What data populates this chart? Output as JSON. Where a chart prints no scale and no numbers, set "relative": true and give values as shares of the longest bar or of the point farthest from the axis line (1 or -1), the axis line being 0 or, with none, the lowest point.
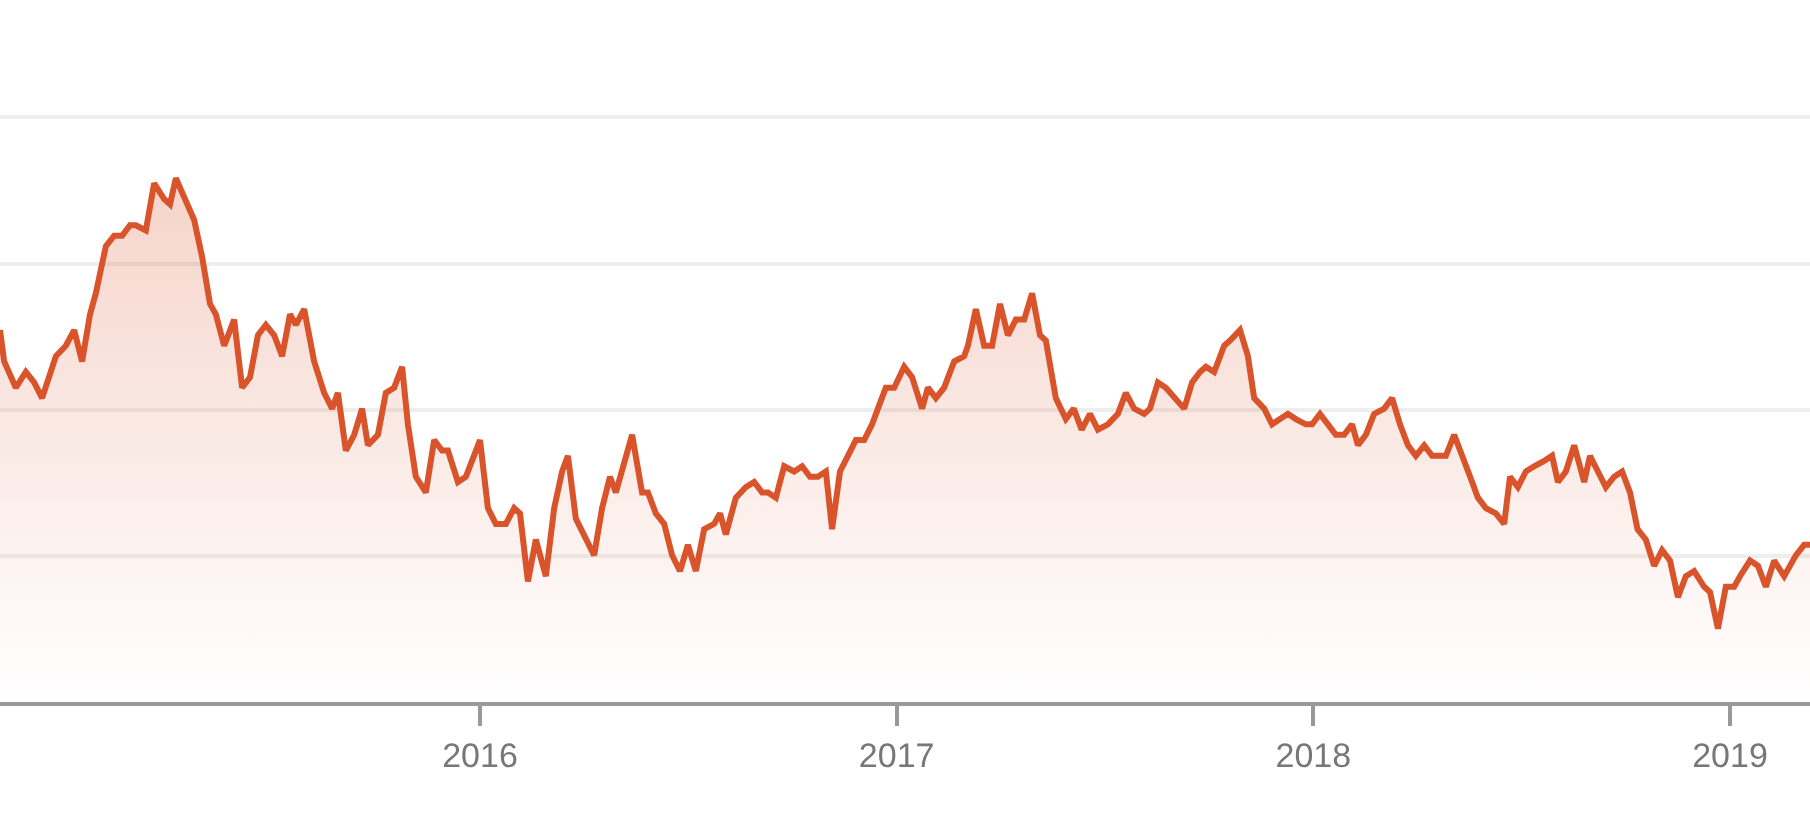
{
  "chart_data": {
    "type": "area",
    "relative": true,
    "grid": "y",
    "marker": "none",
    "line_style": "solid",
    "xlim": [
      2014.848,
      2019.192
    ],
    "xticks": [
      2016,
      2017,
      2018,
      2019
    ],
    "series": [
      {
        "color": "#d9532b",
        "x": [
          2014.848,
          2014.858,
          2014.886,
          2014.91,
          2014.93,
          2014.949,
          2014.982,
          2015.006,
          2015.026,
          2015.045,
          2015.064,
          2015.078,
          2015.102,
          2015.122,
          2015.141,
          2015.16,
          2015.174,
          2015.198,
          2015.218,
          2015.242,
          2015.256,
          2015.27,
          2015.314,
          2015.333,
          2015.352,
          2015.366,
          2015.386,
          2015.41,
          2015.429,
          2015.448,
          2015.467,
          2015.486,
          2015.506,
          2015.525,
          2015.544,
          2015.558,
          2015.578,
          2015.602,
          2015.626,
          2015.645,
          2015.659,
          2015.678,
          2015.698,
          2015.717,
          2015.731,
          2015.755,
          2015.774,
          2015.794,
          2015.813,
          2015.827,
          2015.846,
          2015.87,
          2015.89,
          2015.909,
          2015.923,
          2015.947,
          2015.966,
          2016.0,
          2016.019,
          2016.038,
          2016.062,
          2016.082,
          2016.096,
          2016.115,
          2016.134,
          2016.158,
          2016.178,
          2016.197,
          2016.211,
          2016.23,
          2016.274,
          2016.293,
          2016.312,
          2016.326,
          2016.365,
          2016.389,
          2016.403,
          2016.422,
          2016.442,
          2016.461,
          2016.48,
          2016.499,
          2016.518,
          2016.538,
          2016.562,
          2016.576,
          2016.59,
          2016.614,
          2016.638,
          2016.658,
          2016.677,
          2016.691,
          2016.71,
          2016.73,
          2016.754,
          2016.773,
          2016.792,
          2016.811,
          2016.83,
          2016.845,
          2016.864,
          2016.883,
          2016.902,
          2016.922,
          2016.941,
          2016.955,
          2016.974,
          2016.994,
          2017.018,
          2017.037,
          2017.061,
          2017.075,
          2017.094,
          2017.114,
          2017.138,
          2017.162,
          2017.171,
          2017.19,
          2017.21,
          2017.229,
          2017.248,
          2017.267,
          2017.286,
          2017.306,
          2017.325,
          2017.344,
          2017.358,
          2017.382,
          2017.406,
          2017.425,
          2017.444,
          2017.464,
          2017.483,
          2017.507,
          2017.531,
          2017.55,
          2017.57,
          2017.594,
          2017.608,
          2017.627,
          2017.646,
          2017.69,
          2017.709,
          2017.728,
          2017.742,
          2017.762,
          2017.786,
          2017.8,
          2017.824,
          2017.843,
          2017.858,
          2017.882,
          2017.901,
          2017.92,
          2017.939,
          2017.958,
          2017.982,
          2017.997,
          2018.016,
          2018.035,
          2018.054,
          2018.074,
          2018.093,
          2018.107,
          2018.126,
          2018.146,
          2018.17,
          2018.189,
          2018.208,
          2018.227,
          2018.246,
          2018.266,
          2018.285,
          2018.304,
          2018.318,
          2018.338,
          2018.362,
          2018.381,
          2018.395,
          2018.414,
          2018.438,
          2018.458,
          2018.472,
          2018.491,
          2018.51,
          2018.53,
          2018.554,
          2018.573,
          2018.587,
          2018.606,
          2018.626,
          2018.65,
          2018.664,
          2018.683,
          2018.702,
          2018.722,
          2018.741,
          2018.76,
          2018.778,
          2018.798,
          2018.818,
          2018.837,
          2018.856,
          2018.875,
          2018.894,
          2018.914,
          2018.938,
          2018.952,
          2018.971,
          2018.99,
          2019.01,
          2019.024,
          2019.048,
          2019.067,
          2019.086,
          2019.106,
          2019.13,
          2019.158,
          2019.178,
          2019.192
        ],
        "values": [
          0.71,
          0.65,
          0.6,
          0.63,
          0.61,
          0.58,
          0.66,
          0.68,
          0.71,
          0.65,
          0.74,
          0.78,
          0.87,
          0.89,
          0.89,
          0.91,
          0.91,
          0.9,
          0.99,
          0.96,
          0.95,
          1,
          0.92,
          0.85,
          0.76,
          0.74,
          0.68,
          0.73,
          0.6,
          0.62,
          0.7,
          0.72,
          0.7,
          0.66,
          0.74,
          0.72,
          0.75,
          0.65,
          0.59,
          0.56,
          0.59,
          0.48,
          0.51,
          0.56,
          0.49,
          0.51,
          0.59,
          0.6,
          0.64,
          0.53,
          0.43,
          0.4,
          0.5,
          0.48,
          0.48,
          0.42,
          0.43,
          0.5,
          0.37,
          0.34,
          0.34,
          0.37,
          0.36,
          0.23,
          0.31,
          0.24,
          0.37,
          0.44,
          0.47,
          0.35,
          0.28,
          0.37,
          0.43,
          0.4,
          0.51,
          0.4,
          0.4,
          0.36,
          0.34,
          0.28,
          0.25,
          0.3,
          0.25,
          0.33,
          0.34,
          0.36,
          0.32,
          0.39,
          0.41,
          0.42,
          0.4,
          0.4,
          0.39,
          0.45,
          0.44,
          0.45,
          0.43,
          0.43,
          0.44,
          0.33,
          0.44,
          0.47,
          0.5,
          0.5,
          0.53,
          0.56,
          0.6,
          0.6,
          0.64,
          0.62,
          0.56,
          0.6,
          0.58,
          0.6,
          0.65,
          0.66,
          0.68,
          0.75,
          0.68,
          0.68,
          0.76,
          0.7,
          0.73,
          0.73,
          0.78,
          0.7,
          0.69,
          0.58,
          0.54,
          0.56,
          0.52,
          0.55,
          0.52,
          0.53,
          0.55,
          0.59,
          0.56,
          0.55,
          0.56,
          0.61,
          0.6,
          0.56,
          0.61,
          0.63,
          0.64,
          0.63,
          0.68,
          0.69,
          0.71,
          0.66,
          0.58,
          0.56,
          0.53,
          0.54,
          0.55,
          0.54,
          0.53,
          0.53,
          0.55,
          0.53,
          0.51,
          0.51,
          0.53,
          0.49,
          0.51,
          0.55,
          0.56,
          0.58,
          0.53,
          0.49,
          0.47,
          0.49,
          0.47,
          0.47,
          0.47,
          0.51,
          0.46,
          0.42,
          0.39,
          0.37,
          0.36,
          0.34,
          0.43,
          0.41,
          0.44,
          0.45,
          0.46,
          0.47,
          0.42,
          0.44,
          0.49,
          0.42,
          0.47,
          0.44,
          0.41,
          0.43,
          0.44,
          0.4,
          0.33,
          0.31,
          0.26,
          0.29,
          0.27,
          0.2,
          0.24,
          0.25,
          0.22,
          0.21,
          0.14,
          0.22,
          0.22,
          0.24,
          0.27,
          0.26,
          0.22,
          0.27,
          0.24,
          0.28,
          0.3,
          0.3
        ]
      }
    ]
  }
}
